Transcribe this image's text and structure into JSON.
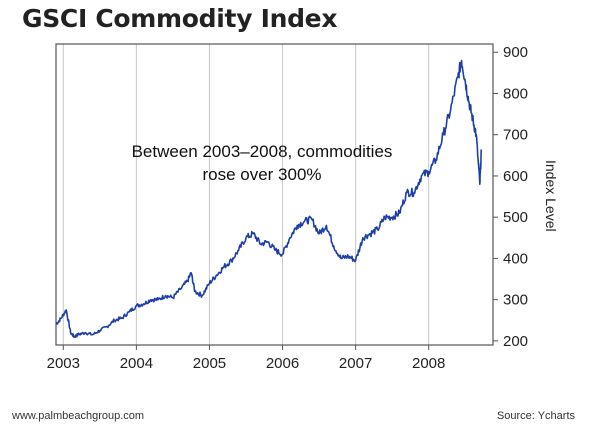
{
  "title": "GSCI Commodity Index",
  "footer": {
    "left": "www.palmbeachgroup.com",
    "right": "Source: Ycharts"
  },
  "colors": {
    "line": "#1f3fa8",
    "frame": "#555555",
    "grid": "#c8c8c8",
    "background": "#ffffff"
  },
  "chart_data": {
    "type": "line",
    "ylabel": "Index Level",
    "xlabel": "",
    "ylim": [
      190,
      920
    ],
    "xlim": [
      2002.9,
      2008.88
    ],
    "y_ticks": [
      200,
      300,
      400,
      500,
      600,
      700,
      800,
      900
    ],
    "x_ticks": [
      2003,
      2004,
      2005,
      2006,
      2007,
      2008
    ],
    "x_tick_labels": [
      "2003",
      "2004",
      "2005",
      "2006",
      "2007",
      "2008"
    ],
    "y_axis_position": "right",
    "grid": "vertical-at-years",
    "annotation": "Between 2003–2008, commodities\nrose over 300%",
    "series": [
      {
        "x": [
          2002.9,
          2002.97,
          2003.04,
          2003.1,
          2003.15,
          2003.2,
          2003.3,
          2003.4,
          2003.5,
          2003.6,
          2003.7,
          2003.8,
          2003.9,
          2004.0,
          2004.1,
          2004.2,
          2004.3,
          2004.4,
          2004.5,
          2004.6,
          2004.7,
          2004.75,
          2004.8,
          2004.9,
          2005.0,
          2005.1,
          2005.2,
          2005.3,
          2005.4,
          2005.5,
          2005.6,
          2005.7,
          2005.8,
          2005.9,
          2006.0,
          2006.1,
          2006.2,
          2006.3,
          2006.4,
          2006.5,
          2006.6,
          2006.7,
          2006.8,
          2006.9,
          2007.0,
          2007.1,
          2007.2,
          2007.3,
          2007.4,
          2007.5,
          2007.6,
          2007.7,
          2007.8,
          2007.9,
          2008.0,
          2008.1,
          2008.2,
          2008.3,
          2008.4,
          2008.45,
          2008.5,
          2008.55,
          2008.6,
          2008.65,
          2008.7,
          2008.72
        ],
        "values": [
          240,
          255,
          275,
          220,
          210,
          215,
          220,
          215,
          225,
          235,
          250,
          255,
          270,
          285,
          290,
          300,
          300,
          310,
          305,
          325,
          345,
          365,
          320,
          310,
          340,
          360,
          380,
          395,
          420,
          450,
          460,
          435,
          440,
          420,
          410,
          450,
          480,
          490,
          495,
          460,
          480,
          430,
          400,
          405,
          395,
          450,
          460,
          470,
          500,
          500,
          510,
          560,
          560,
          600,
          610,
          640,
          700,
          760,
          840,
          880,
          830,
          780,
          740,
          700,
          580,
          660
        ]
      }
    ]
  }
}
